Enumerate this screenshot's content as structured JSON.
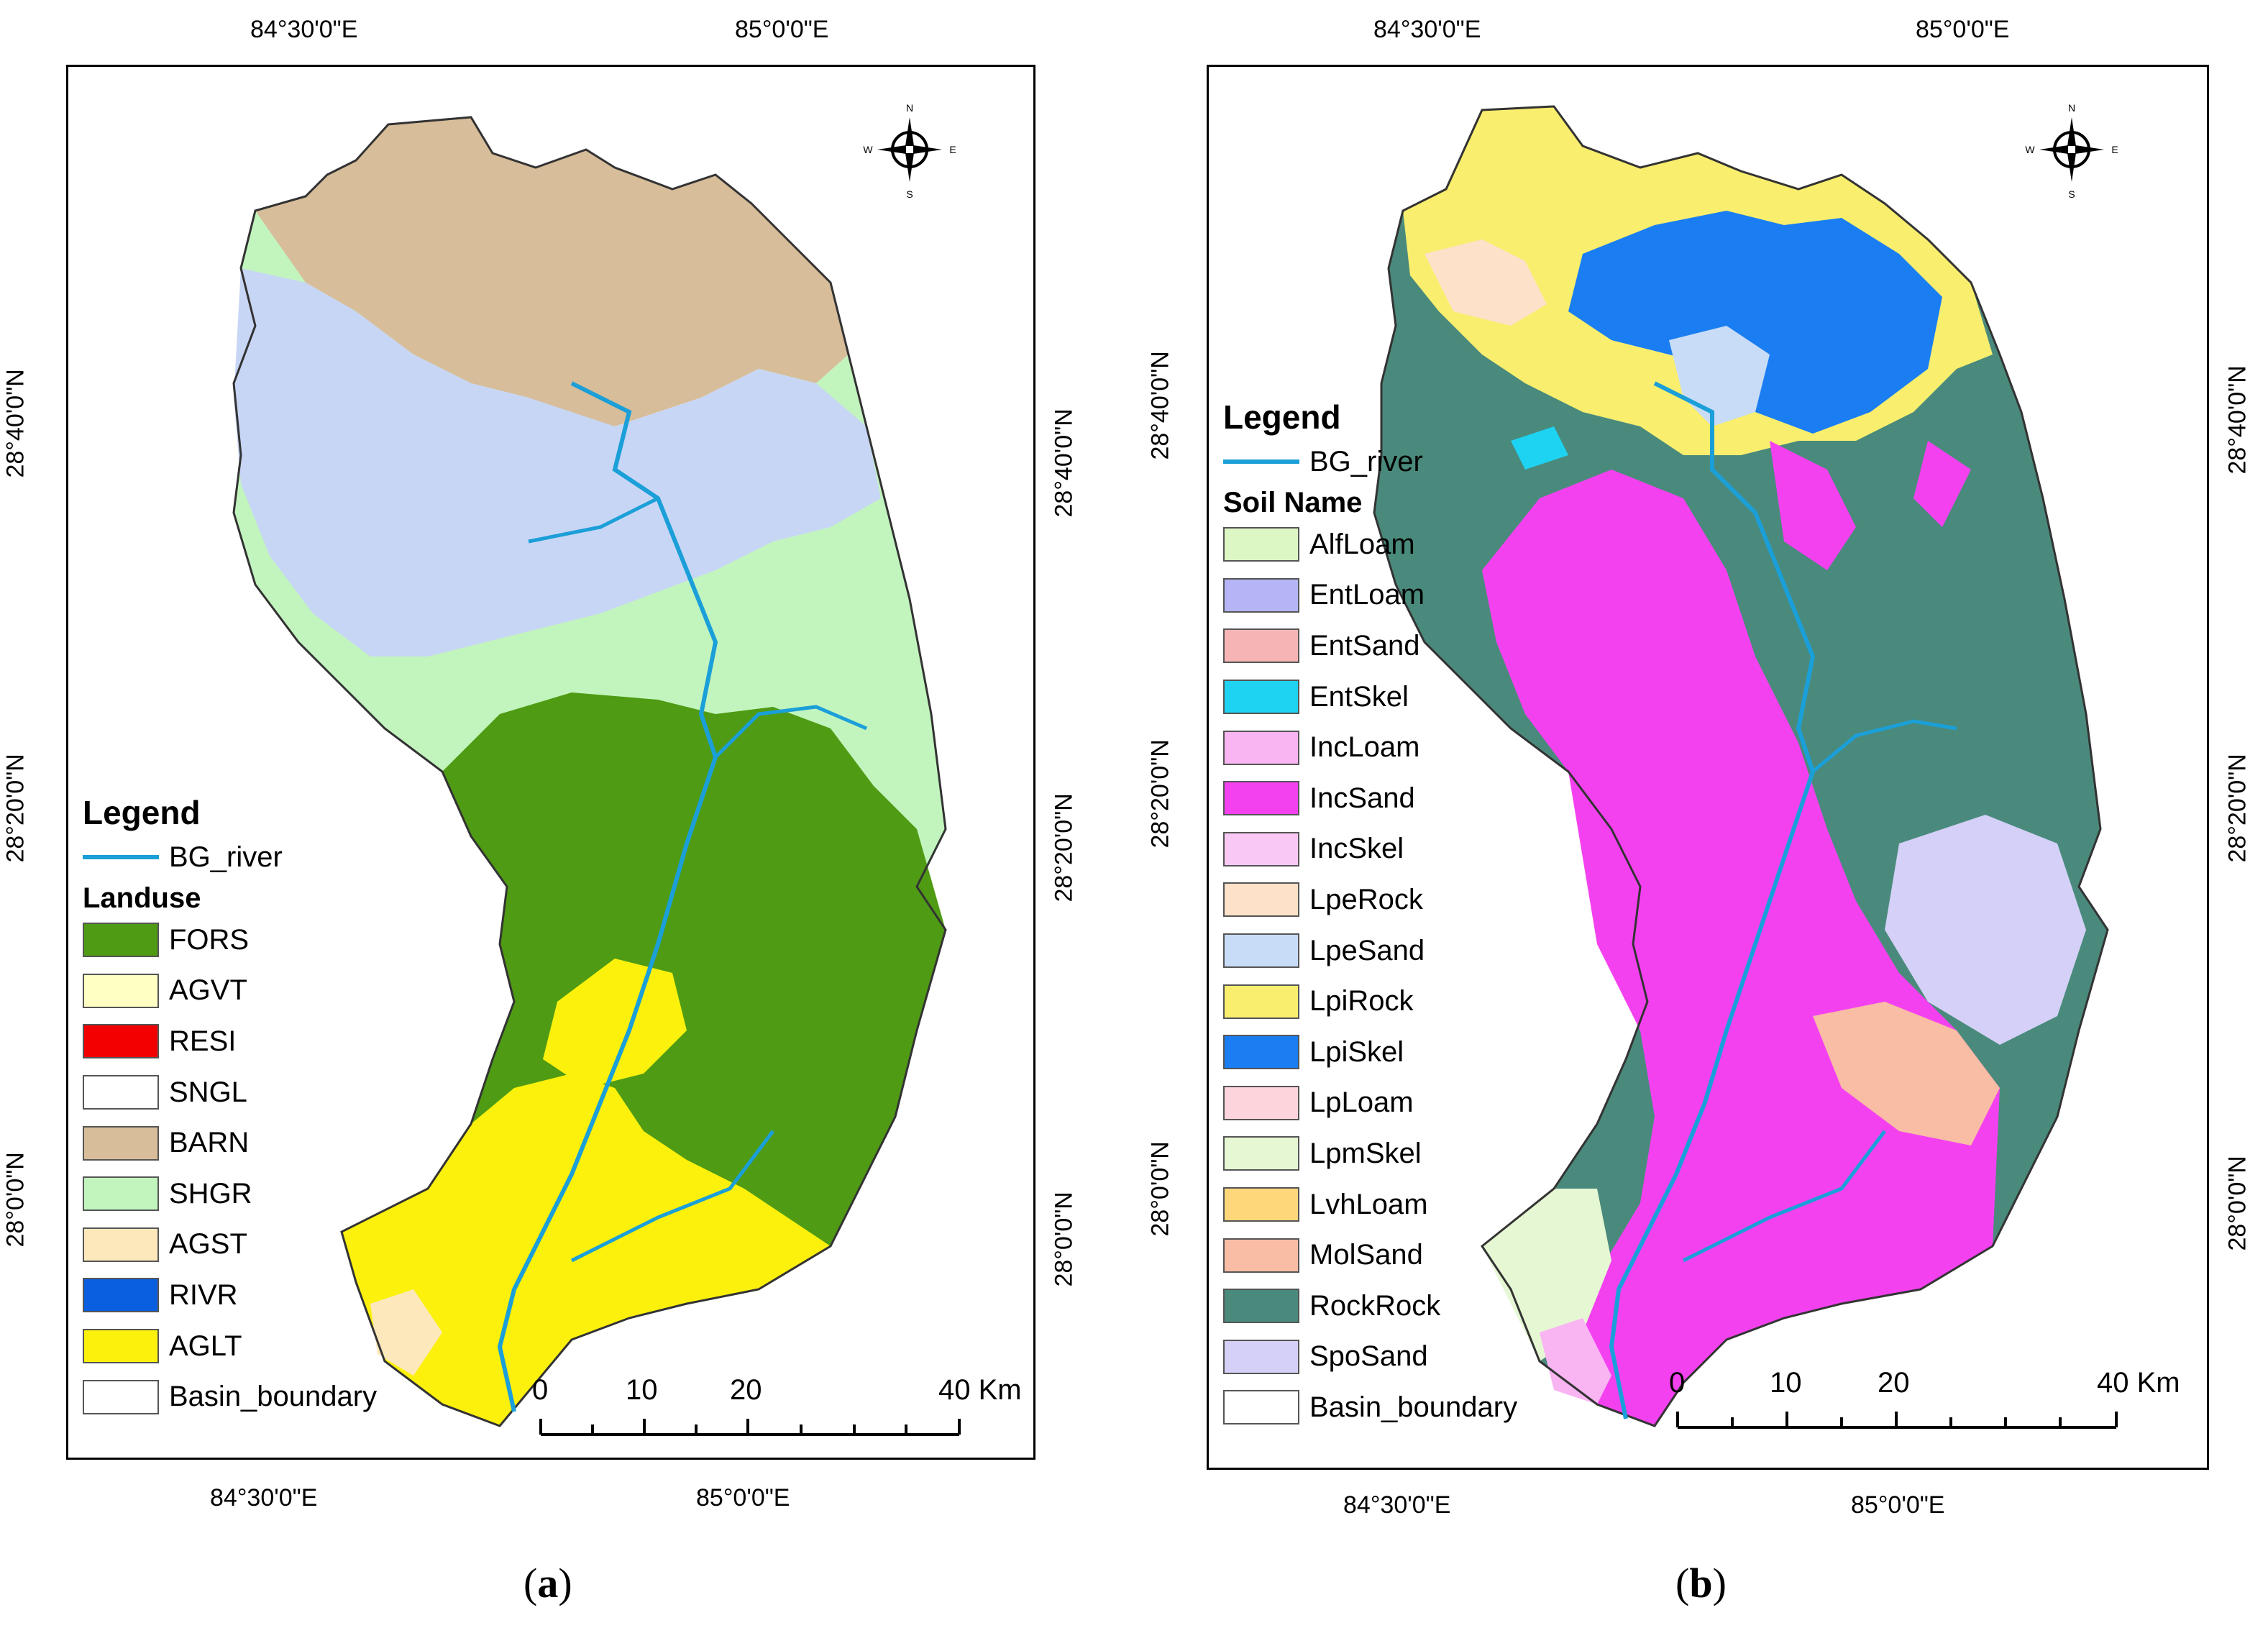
{
  "figure": {
    "panels": [
      {
        "caption_letter": "a",
        "top_coords": [
          "84°30'0\"E",
          "85°0'0\"E"
        ],
        "bottom_coords": [
          "84°30'0\"E",
          "85°0'0\"E"
        ],
        "left_coords": [
          "28°40'0\"N",
          "28°20'0\"N",
          "28°0'0\"N"
        ],
        "right_coords": [
          "28°40'0\"N",
          "28°20'0\"N",
          "28°0'0\"N"
        ],
        "compass": {
          "n": "N",
          "s": "S",
          "e": "E",
          "w": "W"
        },
        "legend": {
          "title": "Legend",
          "river_label": "BG_river",
          "subtitle": "Landuse",
          "items": [
            {
              "label": "FORS",
              "color": "#4f9b14"
            },
            {
              "label": "AGVT",
              "color": "#ffffc4"
            },
            {
              "label": "RESI",
              "color": "#f20000"
            },
            {
              "label": "SNGL",
              "color": "#ffffff"
            },
            {
              "label": "BARN",
              "color": "#d7bd9a"
            },
            {
              "label": "SHGR",
              "color": "#c2f5be"
            },
            {
              "label": "AGST",
              "color": "#fde8bc"
            },
            {
              "label": "RIVR",
              "color": "#0a5fe0"
            },
            {
              "label": "AGLT",
              "color": "#fbf10c"
            },
            {
              "label": "Basin_boundary",
              "color": "#ffffff"
            }
          ]
        },
        "scale": {
          "ticks": [
            "0",
            "10",
            "20",
            "40 Km"
          ]
        }
      },
      {
        "caption_letter": "b",
        "top_coords": [
          "84°30'0\"E",
          "85°0'0\"E"
        ],
        "bottom_coords": [
          "84°30'0\"E",
          "85°0'0\"E"
        ],
        "left_coords": [
          "28°40'0\"N",
          "28°20'0\"N",
          "28°0'0\"N"
        ],
        "right_coords": [
          "28°40'0\"N",
          "28°20'0\"N",
          "28°0'0\"N"
        ],
        "compass": {
          "n": "N",
          "s": "S",
          "e": "E",
          "w": "W"
        },
        "legend": {
          "title": "Legend",
          "river_label": "BG_river",
          "subtitle": "Soil Name",
          "items": [
            {
              "label": "AlfLoam",
              "color": "#dcf7c4"
            },
            {
              "label": "EntLoam",
              "color": "#b4b4f7"
            },
            {
              "label": "EntSand",
              "color": "#f7b4b4"
            },
            {
              "label": "EntSkel",
              "color": "#1ed2f2"
            },
            {
              "label": "IncLoam",
              "color": "#f9b4f2"
            },
            {
              "label": "IncSand",
              "color": "#f441f0"
            },
            {
              "label": "IncSkel",
              "color": "#f9c8f4"
            },
            {
              "label": "LpeRock",
              "color": "#fde1c8"
            },
            {
              "label": "LpeSand",
              "color": "#c8dcf7"
            },
            {
              "label": "LpiRock",
              "color": "#f9ee6e"
            },
            {
              "label": "LpiSkel",
              "color": "#1a7ef2"
            },
            {
              "label": "LpLoam",
              "color": "#fdd4dc"
            },
            {
              "label": "LpmSkel",
              "color": "#e6f7d4"
            },
            {
              "label": "LvhLoam",
              "color": "#fdd77a"
            },
            {
              "label": "MolSand",
              "color": "#f9bca4"
            },
            {
              "label": "RockRock",
              "color": "#4a8a7c"
            },
            {
              "label": "SpoSand",
              "color": "#d4d0f7"
            },
            {
              "label": "Basin_boundary",
              "color": "#ffffff"
            }
          ]
        },
        "scale": {
          "ticks": [
            "0",
            "10",
            "20",
            "40 Km"
          ]
        }
      }
    ]
  }
}
